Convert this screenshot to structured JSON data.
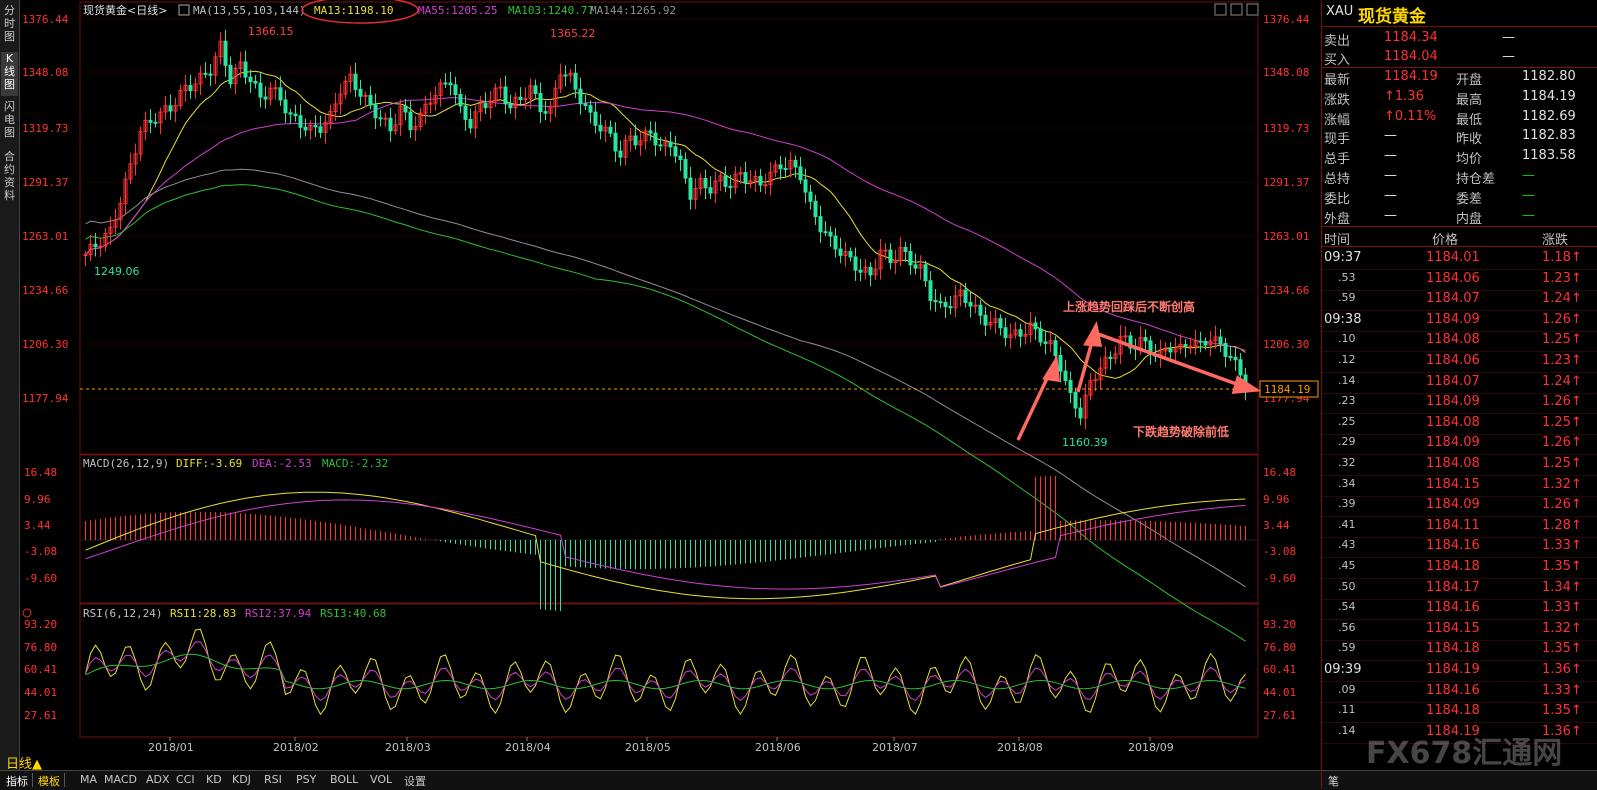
{
  "left_tabs": [
    "分时图",
    "K线图",
    "闪电图",
    "合约资料"
  ],
  "header": {
    "title": "现货黄金<日线>",
    "ma_prefix": "MA(13,55,103,144)",
    "ma13": "MA13:1198.10",
    "ma55": "MA55:1205.25",
    "ma103": "MA103:1240.77",
    "ma144": "MA144:1265.92"
  },
  "colors": {
    "up": "#ff3232",
    "down": "#2de3a0",
    "ma13": "#e8e030",
    "ma55": "#d040d0",
    "ma103": "#30c030",
    "ma144": "#909090",
    "axis": "#ff3232"
  },
  "price_axis": {
    "labels": [
      "1376.44",
      "1348.08",
      "1319.73",
      "1291.37",
      "1263.01",
      "1234.66",
      "1206.30",
      "1177.94"
    ],
    "current": "1184.19"
  },
  "annotations": {
    "high1": "1366.15",
    "high2": "1365.22",
    "low_start": "1249.06",
    "low_end": "1160.39",
    "text_up": "上涨趋势回踩后不断创高",
    "text_down": "下跌趋势破除前低"
  },
  "macd": {
    "header": "MACD(26,12,9)",
    "diff": "DIFF:-3.69",
    "dea": "DEA:-2.53",
    "macd": "MACD:-2.32",
    "labels": [
      "16.48",
      "9.96",
      "3.44",
      "-3.08",
      "-9.60"
    ]
  },
  "rsi": {
    "header": "RSI(6,12,24)",
    "rsi1": "RSI1:28.83",
    "rsi2": "RSI2:37.94",
    "rsi3": "RSI3:40.68",
    "labels": [
      "93.20",
      "76.80",
      "60.41",
      "44.01",
      "27.61"
    ]
  },
  "x_axis": [
    "2018/01",
    "2018/02",
    "2018/03",
    "2018/04",
    "2018/05",
    "2018/06",
    "2018/07",
    "2018/08",
    "2018/09"
  ],
  "bottom": {
    "period": "日线▲",
    "tabs": [
      "指标",
      "模板",
      "MA",
      "MACD",
      "ADX",
      "CCI",
      "KD",
      "KDJ",
      "RSI",
      "PSY",
      "BOLL",
      "VOL",
      "设置"
    ]
  },
  "quote": {
    "code": "XAU",
    "name": "现货黄金",
    "sell_label": "卖出",
    "sell": "1184.34",
    "sell_vol": "—",
    "buy_label": "买入",
    "buy": "1184.04",
    "buy_vol": "—",
    "rows": [
      {
        "l1": "最新",
        "v1": "1184.19",
        "l2": "开盘",
        "v2": "1182.80"
      },
      {
        "l1": "涨跌",
        "v1": "↑1.36",
        "l2": "最高",
        "v2": "1184.19"
      },
      {
        "l1": "涨幅",
        "v1": "↑0.11%",
        "l2": "最低",
        "v2": "1182.69"
      },
      {
        "l1": "现手",
        "v1": "—",
        "l2": "昨收",
        "v2": "1182.83"
      },
      {
        "l1": "总手",
        "v1": "—",
        "l2": "均价",
        "v2": "1183.58"
      },
      {
        "l1": "总持",
        "v1": "—",
        "l2": "持仓差",
        "v2": "—"
      },
      {
        "l1": "委比",
        "v1": "—",
        "l2": "委差",
        "v2": "—"
      },
      {
        "l1": "外盘",
        "v1": "—",
        "l2": "内盘",
        "v2": "—"
      }
    ],
    "tick_headers": [
      "时间",
      "价格",
      "涨跌"
    ],
    "ticks": [
      {
        "t": "09:37",
        "p": "1184.01",
        "c": "1.18↑"
      },
      {
        "t": ".53",
        "p": "1184.06",
        "c": "1.23↑"
      },
      {
        "t": ".59",
        "p": "1184.07",
        "c": "1.24↑"
      },
      {
        "t": "09:38",
        "p": "1184.09",
        "c": "1.26↑"
      },
      {
        "t": ".10",
        "p": "1184.08",
        "c": "1.25↑"
      },
      {
        "t": ".12",
        "p": "1184.06",
        "c": "1.23↑"
      },
      {
        "t": ".14",
        "p": "1184.07",
        "c": "1.24↑"
      },
      {
        "t": ".23",
        "p": "1184.09",
        "c": "1.26↑"
      },
      {
        "t": ".25",
        "p": "1184.08",
        "c": "1.25↑"
      },
      {
        "t": ".29",
        "p": "1184.09",
        "c": "1.26↑"
      },
      {
        "t": ".32",
        "p": "1184.08",
        "c": "1.25↑"
      },
      {
        "t": ".34",
        "p": "1184.15",
        "c": "1.32↑"
      },
      {
        "t": ".39",
        "p": "1184.09",
        "c": "1.26↑"
      },
      {
        "t": ".41",
        "p": "1184.11",
        "c": "1.28↑"
      },
      {
        "t": ".43",
        "p": "1184.16",
        "c": "1.33↑"
      },
      {
        "t": ".45",
        "p": "1184.18",
        "c": "1.35↑"
      },
      {
        "t": ".50",
        "p": "1184.17",
        "c": "1.34↑"
      },
      {
        "t": ".54",
        "p": "1184.16",
        "c": "1.33↑"
      },
      {
        "t": ".56",
        "p": "1184.15",
        "c": "1.32↑"
      },
      {
        "t": ".59",
        "p": "1184.18",
        "c": "1.35↑"
      },
      {
        "t": "09:39",
        "p": "1184.19",
        "c": "1.36↑"
      },
      {
        "t": ".09",
        "p": "1184.16",
        "c": "1.33↑"
      },
      {
        "t": ".11",
        "p": "1184.18",
        "c": "1.35↑"
      },
      {
        "t": ".14",
        "p": "1184.19",
        "c": "1.36↑"
      }
    ],
    "footer": "笔",
    "watermark": "FX678汇通网"
  }
}
